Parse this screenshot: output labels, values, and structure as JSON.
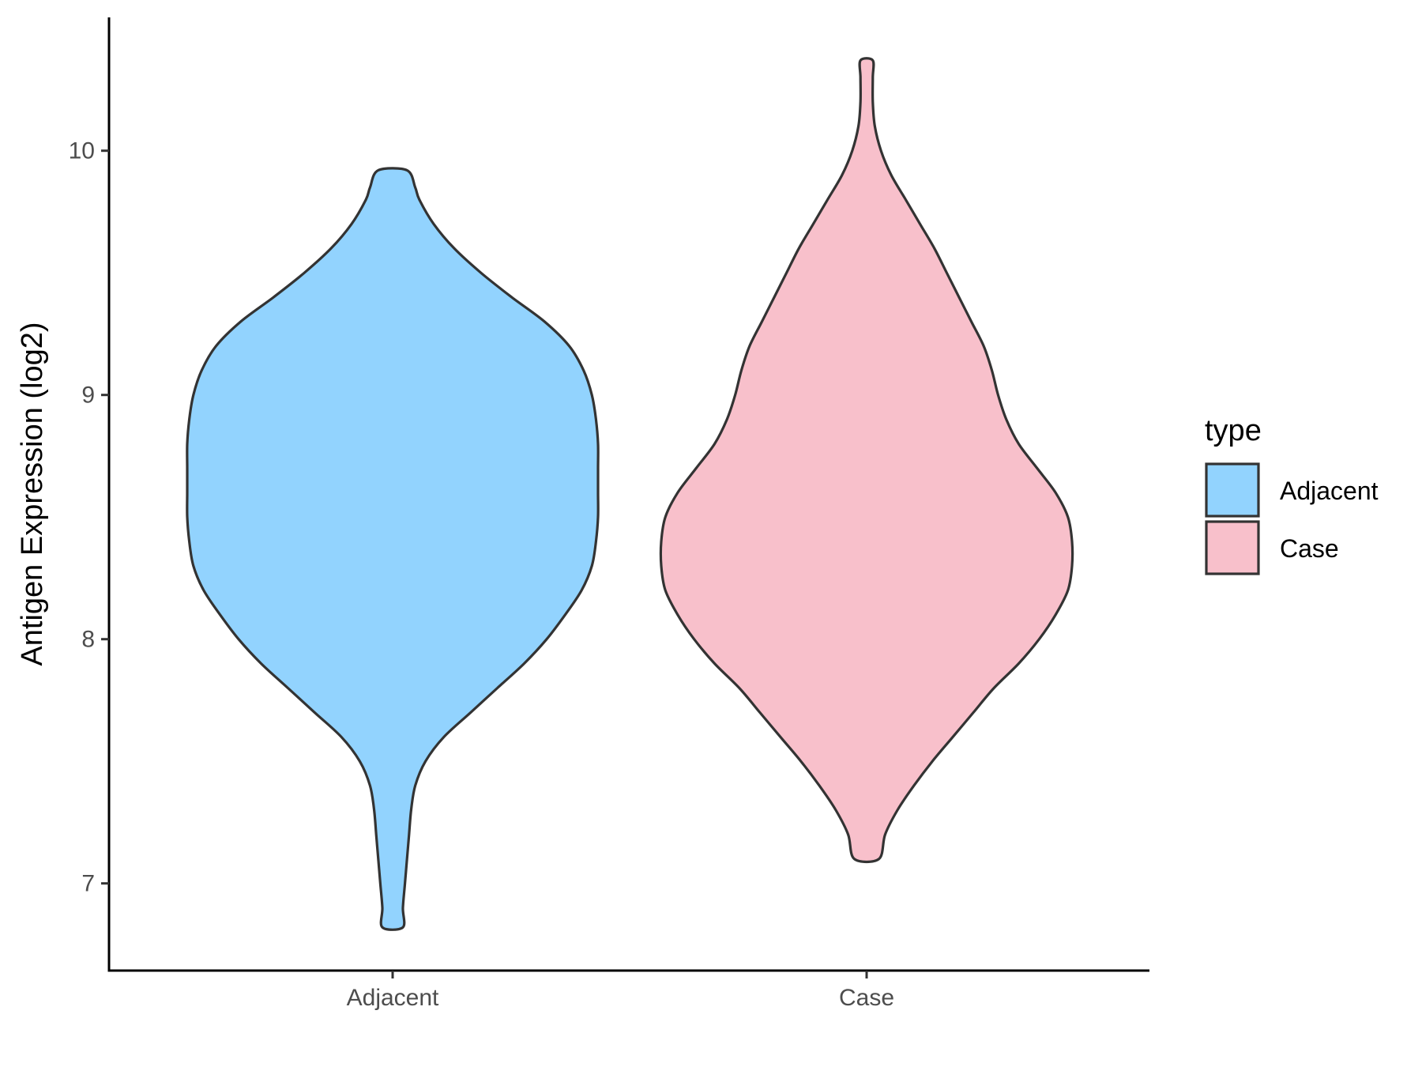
{
  "chart_data": {
    "type": "violin",
    "ylabel": "Antigen Expression (log2)",
    "xlabel": "",
    "title": "",
    "categories": [
      "Adjacent",
      "Case"
    ],
    "y_ticks": [
      7,
      8,
      9,
      10
    ],
    "ylim": [
      6.65,
      10.55
    ],
    "grid": false,
    "legend": {
      "title": "type",
      "placement": "right",
      "entries": [
        {
          "label": "Adjacent",
          "color": "#92D3FE"
        },
        {
          "label": "Case",
          "color": "#F8C0CB"
        }
      ]
    },
    "series": [
      {
        "category": "Adjacent",
        "color": "#92D3FE",
        "min": 6.82,
        "max": 9.92,
        "density": [
          [
            6.82,
            0.05
          ],
          [
            6.9,
            0.05
          ],
          [
            7.0,
            0.06
          ],
          [
            7.1,
            0.07
          ],
          [
            7.2,
            0.08
          ],
          [
            7.3,
            0.09
          ],
          [
            7.4,
            0.11
          ],
          [
            7.5,
            0.16
          ],
          [
            7.6,
            0.25
          ],
          [
            7.7,
            0.38
          ],
          [
            7.8,
            0.51
          ],
          [
            7.9,
            0.64
          ],
          [
            8.0,
            0.75
          ],
          [
            8.1,
            0.84
          ],
          [
            8.2,
            0.92
          ],
          [
            8.3,
            0.97
          ],
          [
            8.4,
            0.99
          ],
          [
            8.5,
            1.0
          ],
          [
            8.6,
            1.0
          ],
          [
            8.7,
            1.0
          ],
          [
            8.8,
            1.0
          ],
          [
            8.9,
            0.99
          ],
          [
            9.0,
            0.97
          ],
          [
            9.1,
            0.93
          ],
          [
            9.2,
            0.86
          ],
          [
            9.3,
            0.74
          ],
          [
            9.4,
            0.58
          ],
          [
            9.5,
            0.43
          ],
          [
            9.6,
            0.3
          ],
          [
            9.7,
            0.2
          ],
          [
            9.8,
            0.13
          ],
          [
            9.85,
            0.11
          ],
          [
            9.92,
            0.07
          ]
        ]
      },
      {
        "category": "Case",
        "color": "#F8C0CB",
        "min": 7.1,
        "max": 10.37,
        "density": [
          [
            7.1,
            0.06
          ],
          [
            7.2,
            0.09
          ],
          [
            7.3,
            0.15
          ],
          [
            7.4,
            0.23
          ],
          [
            7.5,
            0.32
          ],
          [
            7.6,
            0.42
          ],
          [
            7.7,
            0.52
          ],
          [
            7.8,
            0.62
          ],
          [
            7.9,
            0.74
          ],
          [
            8.0,
            0.84
          ],
          [
            8.1,
            0.92
          ],
          [
            8.2,
            0.98
          ],
          [
            8.3,
            1.0
          ],
          [
            8.4,
            1.0
          ],
          [
            8.5,
            0.98
          ],
          [
            8.6,
            0.92
          ],
          [
            8.7,
            0.83
          ],
          [
            8.8,
            0.74
          ],
          [
            8.9,
            0.68
          ],
          [
            9.0,
            0.64
          ],
          [
            9.1,
            0.61
          ],
          [
            9.2,
            0.57
          ],
          [
            9.3,
            0.51
          ],
          [
            9.4,
            0.45
          ],
          [
            9.5,
            0.39
          ],
          [
            9.6,
            0.33
          ],
          [
            9.7,
            0.26
          ],
          [
            9.8,
            0.19
          ],
          [
            9.9,
            0.12
          ],
          [
            10.0,
            0.07
          ],
          [
            10.1,
            0.04
          ],
          [
            10.2,
            0.03
          ],
          [
            10.3,
            0.03
          ],
          [
            10.37,
            0.03
          ]
        ]
      }
    ]
  }
}
